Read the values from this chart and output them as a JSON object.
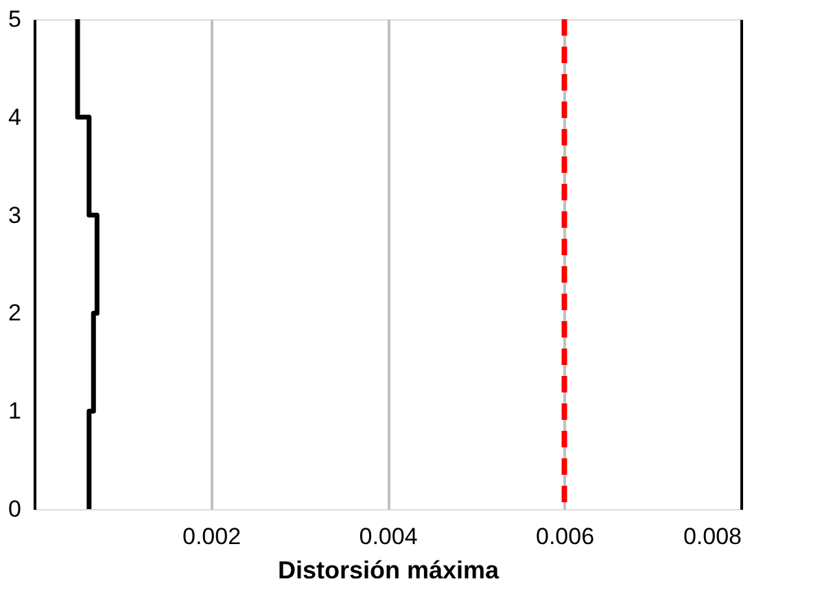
{
  "chart_data": {
    "type": "line",
    "xlabel": "Distorsión máxima",
    "xlim": [
      0,
      0.008
    ],
    "xticks": [
      {
        "value": 0,
        "label": null
      },
      0.002,
      0.004,
      0.006,
      0.008
    ],
    "ylim": [
      0,
      5
    ],
    "yticks": [
      0,
      1,
      2,
      3,
      4,
      5
    ],
    "grid": "x",
    "line_style": "solid",
    "marker": "none",
    "series": [
      {
        "color": "#000000",
        "x": [
          0.00062,
          0.00062,
          0.00067,
          0.00067,
          0.00071,
          0.00071,
          0.00062,
          0.00062,
          0.00049,
          0.00049
        ],
        "values": [
          0,
          1,
          1,
          2,
          2,
          3,
          3,
          4,
          4,
          5
        ]
      }
    ],
    "ref_lines": [
      {
        "axis": "x",
        "value": 0.006,
        "label": null,
        "color": "#ff0000",
        "line_style": "dashed"
      }
    ]
  }
}
